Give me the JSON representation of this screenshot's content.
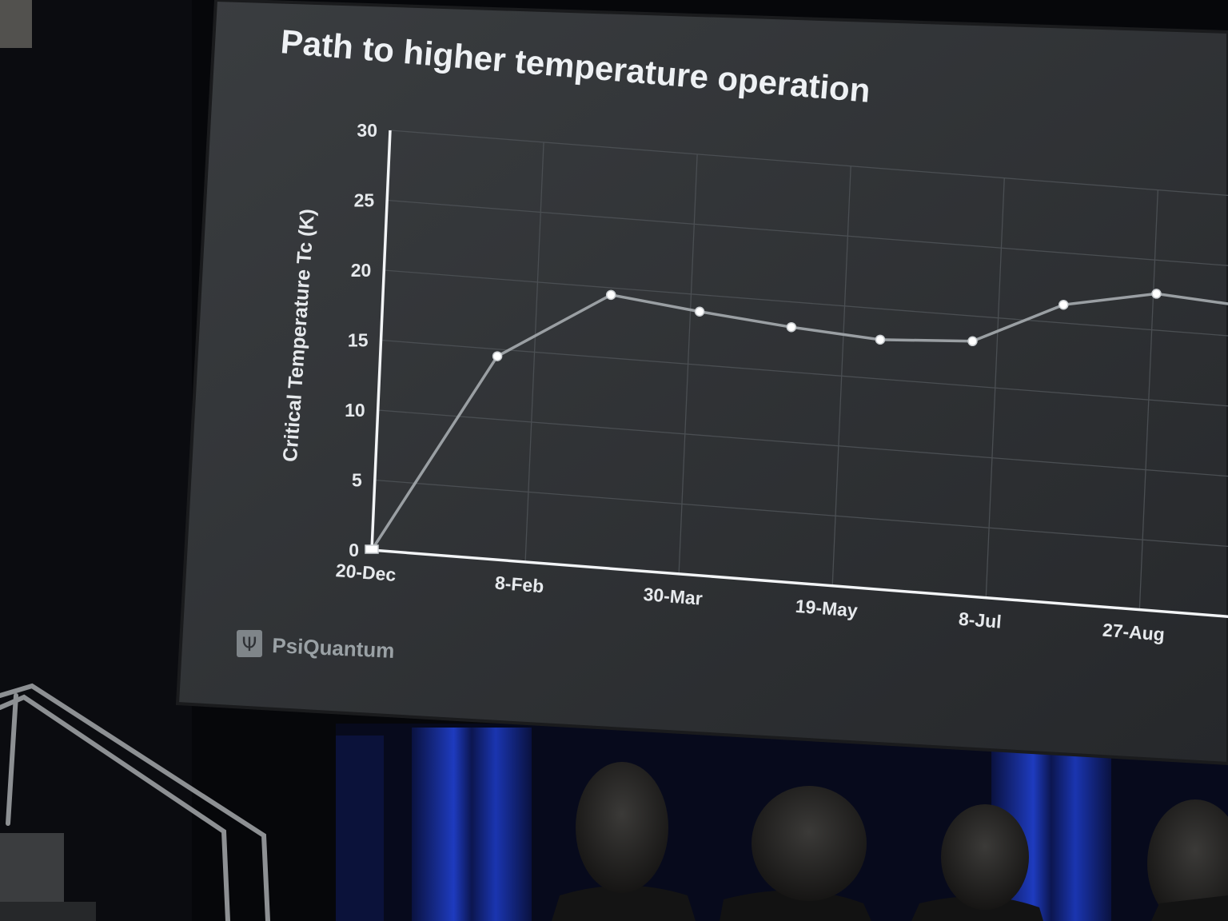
{
  "slide": {
    "logo_text": "PsiQuantum"
  },
  "chart_data": {
    "type": "line",
    "title": "Path to higher temperature operation",
    "xlabel": "",
    "ylabel": "Critical Temperature Tc (K)",
    "x_tick_labels": [
      "20-Dec",
      "8-Feb",
      "30-Mar",
      "19-May",
      "8-Jul",
      "27-Aug"
    ],
    "y_ticks": [
      0,
      5,
      10,
      15,
      20,
      25,
      30
    ],
    "ylim": [
      0,
      30
    ],
    "grid": true,
    "series": [
      {
        "x": [
          "20-Dec",
          "27-Jan",
          "4-Mar",
          "2-Apr",
          "2-May",
          "31-May",
          "30-Jun",
          "29-Jul",
          "28-Aug",
          "26-Sep"
        ],
        "values": [
          0,
          14.5,
          19.5,
          18.8,
          18.2,
          17.8,
          18.2,
          21.3,
          22.6,
          22.2
        ]
      }
    ],
    "colors": {
      "line": "#9a9fa3",
      "axis": "#f2f4f6",
      "grid": "#4a4e52",
      "background": "#2e3134"
    }
  }
}
